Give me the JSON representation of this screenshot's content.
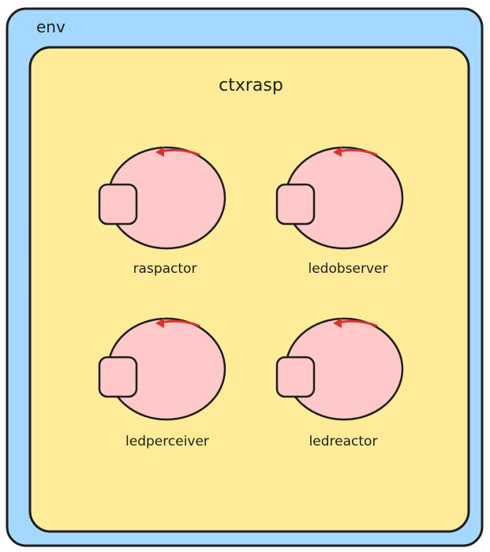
{
  "diagram": {
    "outer_container": {
      "label": "env",
      "fill": "#a5d8ff"
    },
    "inner_container": {
      "label": "ctxrasp",
      "fill": "#ffec99"
    },
    "actors": [
      {
        "label": "raspactor"
      },
      {
        "label": "ledobserver"
      },
      {
        "label": "ledperceiver"
      },
      {
        "label": "ledreactor"
      }
    ],
    "colors": {
      "actor_fill": "#ffc9c9",
      "stroke": "#1e1e1e",
      "arrow": "#e03131"
    }
  }
}
